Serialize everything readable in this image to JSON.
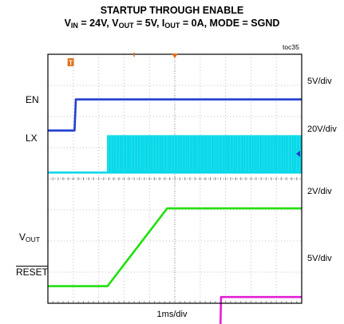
{
  "title": "STARTUP THROUGH ENABLE",
  "subtitle": {
    "vin_label": "V",
    "vin_sub": "IN",
    "vin_value": " = 24V, ",
    "vout_label": "V",
    "vout_sub": "OUT",
    "vout_value": " = 5V, ",
    "iout_label": "I",
    "iout_sub": "OUT",
    "iout_value": " = 0A, MODE = SGND"
  },
  "figure_id": "toc35",
  "trigger_marker": "T",
  "chart_data": {
    "type": "line",
    "x_unit": "ms",
    "xlim": [
      0,
      10
    ],
    "x_divisions": 10,
    "y_divisions": 8,
    "grid": true,
    "time_scale": "1ms/div",
    "series": [
      {
        "name": "EN",
        "color": "#1f3fd0",
        "scale": "5V/div",
        "points": [
          [
            0,
            0
          ],
          [
            1.05,
            0
          ],
          [
            1.1,
            5
          ],
          [
            10,
            5
          ]
        ]
      },
      {
        "name": "LX",
        "color": "#00d8e8",
        "scale": "20V/div",
        "burst_start_ms": 2.35,
        "burst_amplitude_v": 24
      },
      {
        "name": "VOUT",
        "label": "V",
        "sub": "OUT",
        "color": "#22e010",
        "scale": "2V/div",
        "points": [
          [
            0,
            0
          ],
          [
            2.35,
            0
          ],
          [
            4.7,
            5
          ],
          [
            10,
            5
          ]
        ]
      },
      {
        "name": "RESET",
        "color": "#e020d8",
        "scale": "5V/div",
        "points": [
          [
            0,
            0
          ],
          [
            6.8,
            0
          ],
          [
            6.82,
            5
          ],
          [
            10,
            5
          ]
        ]
      }
    ]
  },
  "colors": {
    "grid": "#bfbfbf",
    "frame": "#000000",
    "trigger": "#e07020"
  }
}
